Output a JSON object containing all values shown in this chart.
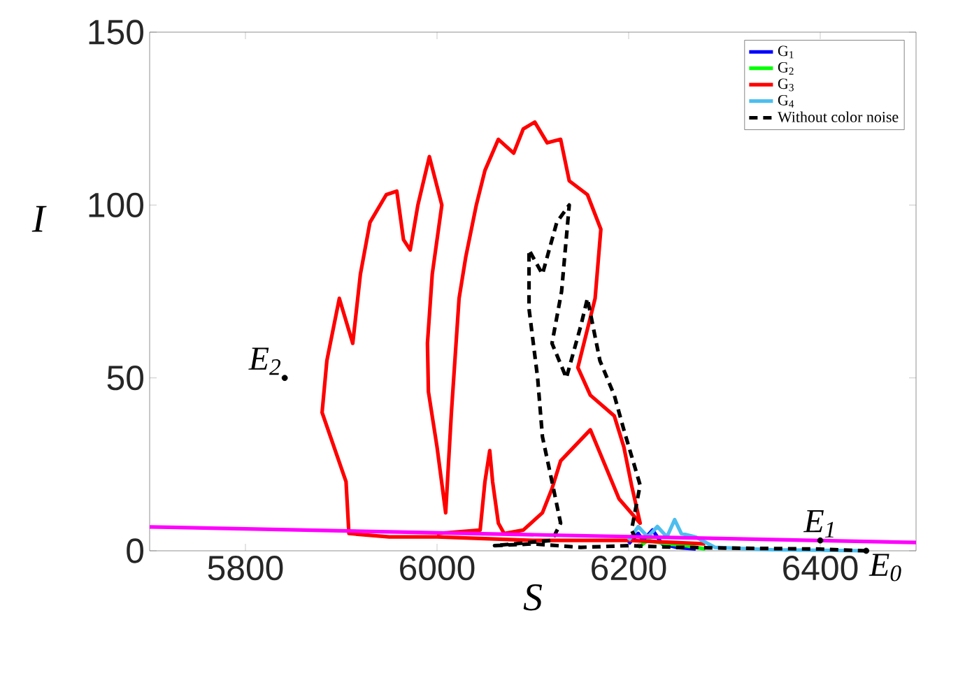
{
  "chart_data": {
    "type": "line",
    "xlabel": "S",
    "ylabel": "I",
    "xlim": [
      5700,
      6500
    ],
    "ylim": [
      0,
      150
    ],
    "xticks": [
      5800,
      6000,
      6200,
      6400
    ],
    "yticks": [
      0,
      50,
      100,
      150
    ],
    "grid": false,
    "legend": "top right",
    "marker": "none",
    "series": [
      {
        "name": "G$_{1}$",
        "color": "#0000ff",
        "line_style": "solid",
        "x": [
          6200,
          6210,
          6215,
          6225,
          6235,
          6250,
          6270
        ],
        "values": [
          2,
          5,
          3,
          6,
          2,
          1,
          0.5
        ]
      },
      {
        "name": "G$_{2}$",
        "color": "#00ff00",
        "line_style": "solid",
        "x": [
          6210,
          6220,
          6240,
          6260,
          6280
        ],
        "values": [
          1,
          3,
          2,
          1.5,
          0.5
        ]
      },
      {
        "name": "G$_{3}$",
        "color": "#ff0000",
        "line_style": "solid",
        "x": [
          6280,
          6200,
          6100,
          6000,
          5950,
          5908,
          5905,
          5880,
          5885,
          5898,
          5912,
          5920,
          5930,
          5947,
          5958,
          5965,
          5972,
          5980,
          5992,
          6005,
          5995,
          5990,
          5991,
          6000,
          6009,
          6015,
          6023,
          6030,
          6041,
          6050,
          6064,
          6080,
          6090,
          6102,
          6115,
          6129,
          6138,
          6157,
          6171,
          6165,
          6147,
          6160,
          6185,
          6195,
          6203,
          6212,
          6190,
          6160,
          6129,
          6120,
          6110,
          6090,
          6070,
          6064,
          6058,
          6055,
          6050,
          6045,
          6000
        ],
        "values": [
          2,
          3,
          3,
          4,
          4,
          5,
          20,
          40,
          55,
          73,
          60,
          80,
          95,
          103,
          104,
          90,
          87,
          100,
          114,
          100,
          80,
          60,
          46,
          30,
          11,
          40,
          73,
          85,
          100,
          110,
          119,
          115,
          122,
          124,
          118,
          119,
          107,
          103,
          93,
          73,
          53,
          45,
          39,
          30,
          19,
          8,
          15,
          35,
          26,
          18,
          11,
          6,
          5,
          8,
          20,
          29,
          20,
          6,
          5
        ]
      },
      {
        "name": "G$_{4}$",
        "color": "#4dbeee",
        "line_style": "solid",
        "x": [
          6200,
          6210,
          6220,
          6230,
          6240,
          6248,
          6255,
          6270,
          6290,
          6350,
          6448
        ],
        "values": [
          3,
          7,
          4,
          7,
          4,
          9,
          5,
          4,
          1,
          0.3,
          0
        ]
      },
      {
        "name": "Without color noise",
        "color": "#000000",
        "line_style": "dashed",
        "x": [
          6448,
          6400,
          6300,
          6250,
          6200,
          6150,
          6100,
          6060,
          6120,
          6129,
          6120,
          6110,
          6105,
          6096,
          6096,
          6110,
          6125,
          6138,
          6130,
          6120,
          6135,
          6150,
          6157,
          6170,
          6185,
          6195,
          6212,
          6203,
          6210
        ],
        "values": [
          0,
          0.5,
          0.8,
          1,
          1.5,
          1,
          2,
          1.5,
          3,
          8,
          20,
          33,
          50,
          70,
          87,
          80,
          95,
          100,
          75,
          60,
          50,
          65,
          73,
          55,
          45,
          35,
          19,
          6,
          2
        ]
      },
      {
        "color": "#ff00ff",
        "line_style": "solid",
        "x": [
          5700,
          6500
        ],
        "values": [
          6.9,
          2.4
        ]
      }
    ],
    "annotations": [
      {
        "text": "E$_{2}$",
        "x": 5841,
        "y": 50
      },
      {
        "text": "E$_{1}$",
        "x": 6400,
        "y": 3
      },
      {
        "text": "E$_{0}$",
        "x": 6448,
        "y": 0
      }
    ]
  }
}
